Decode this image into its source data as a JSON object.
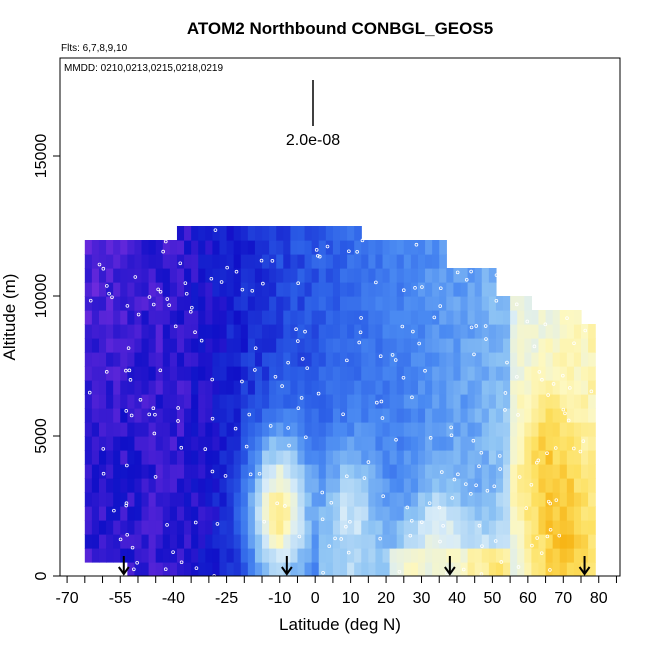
{
  "chart_data": {
    "type": "heatmap",
    "title": "ATOM2 Northbound CONBGL_GEOS5",
    "flights_note": "Flts: 6,7,8,9,10",
    "dates_note": "MMDD: 0210,0213,0215,0218,0219",
    "scale_bar_label": "2.0e-08",
    "xlabel": "Latitude (deg N)",
    "ylabel": "Altitude (m)",
    "xlim": [
      -72,
      86
    ],
    "ylim": [
      0,
      18500
    ],
    "x_ticks": [
      -70,
      -55,
      -40,
      -25,
      -10,
      0,
      10,
      20,
      30,
      40,
      50,
      60,
      70,
      80
    ],
    "x_tick_labels": [
      "-70",
      "-55",
      "-40",
      "-25",
      "-10",
      "0",
      "10",
      "20",
      "30",
      "40",
      "50",
      "60",
      "70",
      "80"
    ],
    "y_ticks": [
      0,
      5000,
      10000,
      15000
    ],
    "y_tick_labels": [
      "0",
      "5000",
      "10000",
      "15000"
    ],
    "color_scale": [
      "#7a2ee0",
      "#1010c8",
      "#2a5ce6",
      "#4a8af2",
      "#8ec4f4",
      "#d8ecf8",
      "#fdf8c0",
      "#fde060",
      "#f5a800"
    ],
    "profile_arrows_lat": [
      -54,
      -8,
      38,
      76
    ],
    "column_tops": [
      {
        "lat0": -65,
        "lat1": -58,
        "top": 12000
      },
      {
        "lat0": -58,
        "lat1": -38,
        "top": 12000
      },
      {
        "lat0": -38,
        "lat1": -14,
        "top": 12500
      },
      {
        "lat0": -14,
        "lat1": 14,
        "top": 12300
      },
      {
        "lat0": 14,
        "lat1": 38,
        "top": 12000
      },
      {
        "lat0": 38,
        "lat1": 52,
        "top": 11000
      },
      {
        "lat0": 52,
        "lat1": 62,
        "top": 10000
      },
      {
        "lat0": 62,
        "lat1": 76,
        "top": 9500
      },
      {
        "lat0": 76,
        "lat1": 80,
        "top": 8900
      }
    ],
    "features": [
      {
        "lat": -62,
        "alt": 11000,
        "level": 0.05
      },
      {
        "lat": -55,
        "alt": 3000,
        "level": 0.1
      },
      {
        "lat": -10,
        "alt": 2300,
        "level": 0.8
      },
      {
        "lat": 10,
        "alt": 2000,
        "level": 0.6
      },
      {
        "lat": 35,
        "alt": 300,
        "level": 0.7
      },
      {
        "lat": 65,
        "alt": 4000,
        "level": 0.9
      },
      {
        "lat": 70,
        "alt": 1500,
        "level": 0.95
      }
    ]
  }
}
